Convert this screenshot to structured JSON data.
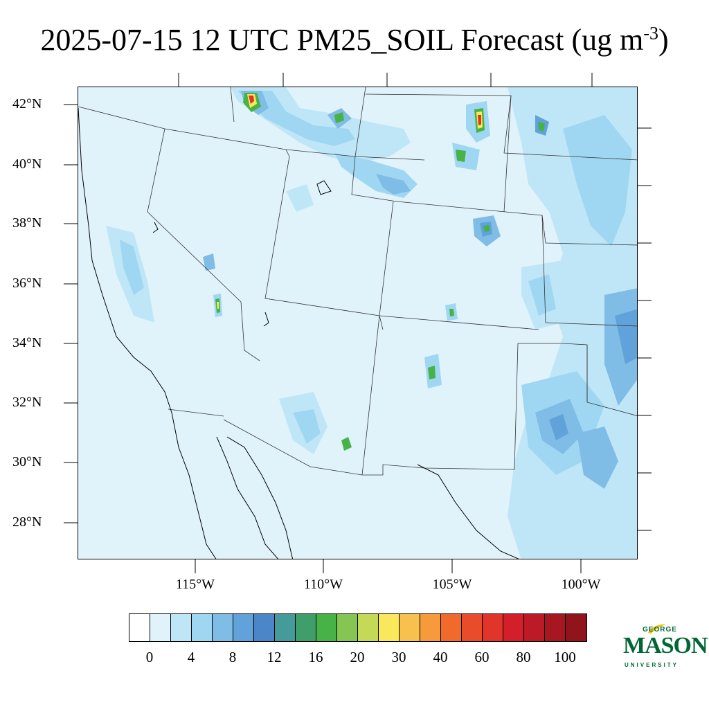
{
  "title": {
    "main": "2025-07-15 12 UTC PM25_SOIL Forecast (ug m",
    "sup": "-3",
    "close": ")"
  },
  "lat_labels": [
    "42°N",
    "40°N",
    "38°N",
    "36°N",
    "34°N",
    "32°N",
    "30°N",
    "28°N"
  ],
  "lon_labels": [
    "115°W",
    "110°W",
    "105°W",
    "100°W"
  ],
  "colorbar": {
    "colors": [
      "#ffffff",
      "#e0f3fb",
      "#bfe6f7",
      "#9fd7f3",
      "#7fbce6",
      "#62a2da",
      "#4a86c8",
      "#459a9a",
      "#3f9e6a",
      "#47b347",
      "#86c553",
      "#c3d957",
      "#f9e85c",
      "#f8c04c",
      "#f79a3c",
      "#f26a2b",
      "#e84c2a",
      "#e03528",
      "#d21f2a",
      "#bb1a26",
      "#a71722",
      "#8f141c"
    ],
    "labels": [
      "0",
      "4",
      "8",
      "12",
      "16",
      "20",
      "30",
      "40",
      "60",
      "80",
      "100"
    ]
  },
  "logo": {
    "george": "GEORGE",
    "mason": "MASON",
    "university": "UNIVERSITY",
    "color": "#006633",
    "accent": "#f2c200"
  },
  "map_colors": {
    "background": "#e0f3fb",
    "level1": "#bfe6f7",
    "level2": "#9fd7f3",
    "level3": "#7fbce6",
    "level4": "#62a2da",
    "level5": "#4a86c8",
    "green": "#47b347",
    "yellow": "#f9e85c",
    "red": "#e03528"
  }
}
